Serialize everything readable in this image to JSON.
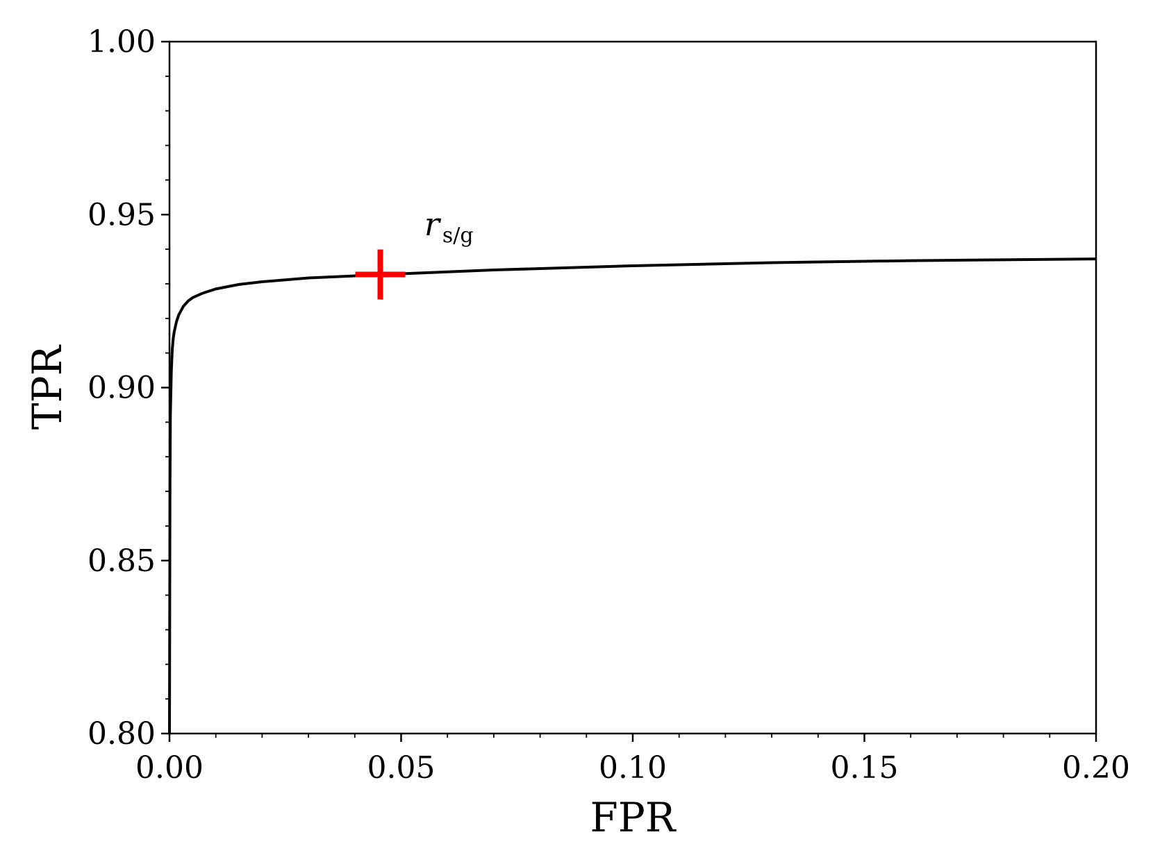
{
  "chart_data": {
    "type": "line",
    "xlabel": "FPR",
    "ylabel": "TPR",
    "xlim": [
      0.0,
      0.2
    ],
    "ylim": [
      0.8,
      1.0
    ],
    "x_ticks": [
      "0.00",
      "0.05",
      "0.10",
      "0.15",
      "0.20"
    ],
    "y_ticks": [
      "0.80",
      "0.85",
      "0.90",
      "0.95",
      "1.00"
    ],
    "grid": false,
    "series": [
      {
        "color": "#000000",
        "x": [
          0.0,
          0.0001,
          0.0002,
          0.0004,
          0.0006,
          0.0008,
          0.001,
          0.0015,
          0.002,
          0.003,
          0.004,
          0.005,
          0.007,
          0.01,
          0.015,
          0.02,
          0.03,
          0.04,
          0.045,
          0.05,
          0.07,
          0.1,
          0.13,
          0.16,
          0.2
        ],
        "y": [
          0.8,
          0.87,
          0.892,
          0.905,
          0.911,
          0.914,
          0.916,
          0.919,
          0.921,
          0.9235,
          0.925,
          0.926,
          0.9272,
          0.9285,
          0.9298,
          0.9306,
          0.9317,
          0.9323,
          0.9326,
          0.9329,
          0.934,
          0.9352,
          0.9361,
          0.9367,
          0.9372
        ]
      }
    ],
    "marker": {
      "x": 0.0455,
      "y": 0.9327,
      "symbol": "+",
      "color": "#ff0000",
      "annotation": {
        "main": "r",
        "subscript": "s/g",
        "x": 0.055,
        "y": 0.944
      }
    }
  }
}
